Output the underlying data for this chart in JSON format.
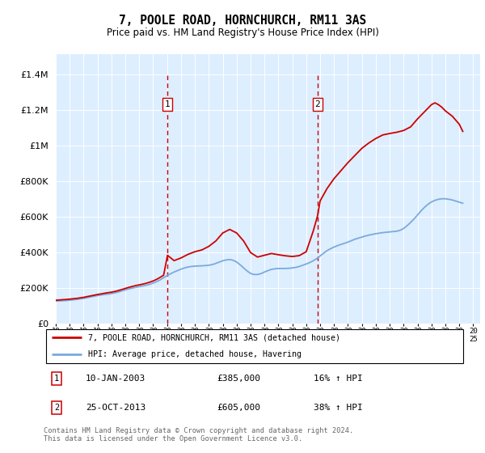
{
  "title": "7, POOLE ROAD, HORNCHURCH, RM11 3AS",
  "subtitle": "Price paid vs. HM Land Registry's House Price Index (HPI)",
  "legend_line1": "7, POOLE ROAD, HORNCHURCH, RM11 3AS (detached house)",
  "legend_line2": "HPI: Average price, detached house, Havering",
  "sale1_date": "10-JAN-2003",
  "sale1_price": 385000,
  "sale1_hpi": "16% ↑ HPI",
  "sale1_year": 2003.03,
  "sale2_date": "25-OCT-2013",
  "sale2_price": 605000,
  "sale2_hpi": "38% ↑ HPI",
  "sale2_year": 2013.81,
  "footer": "Contains HM Land Registry data © Crown copyright and database right 2024.\nThis data is licensed under the Open Government Licence v3.0.",
  "red_color": "#cc0000",
  "blue_color": "#7aaadd",
  "background_color": "#ddeeff",
  "ylim_max": 1400000,
  "xlim_start": 1995.0,
  "xlim_end": 2025.5,
  "hpi_years": [
    1995,
    1995.25,
    1995.5,
    1995.75,
    1996,
    1996.25,
    1996.5,
    1996.75,
    1997,
    1997.25,
    1997.5,
    1997.75,
    1998,
    1998.25,
    1998.5,
    1998.75,
    1999,
    1999.25,
    1999.5,
    1999.75,
    2000,
    2000.25,
    2000.5,
    2000.75,
    2001,
    2001.25,
    2001.5,
    2001.75,
    2002,
    2002.25,
    2002.5,
    2002.75,
    2003,
    2003.25,
    2003.5,
    2003.75,
    2004,
    2004.25,
    2004.5,
    2004.75,
    2005,
    2005.25,
    2005.5,
    2005.75,
    2006,
    2006.25,
    2006.5,
    2006.75,
    2007,
    2007.25,
    2007.5,
    2007.75,
    2008,
    2008.25,
    2008.5,
    2008.75,
    2009,
    2009.25,
    2009.5,
    2009.75,
    2010,
    2010.25,
    2010.5,
    2010.75,
    2011,
    2011.25,
    2011.5,
    2011.75,
    2012,
    2012.25,
    2012.5,
    2012.75,
    2013,
    2013.25,
    2013.5,
    2013.75,
    2014,
    2014.25,
    2014.5,
    2014.75,
    2015,
    2015.25,
    2015.5,
    2015.75,
    2016,
    2016.25,
    2016.5,
    2016.75,
    2017,
    2017.25,
    2017.5,
    2017.75,
    2018,
    2018.25,
    2018.5,
    2018.75,
    2019,
    2019.25,
    2019.5,
    2019.75,
    2020,
    2020.25,
    2020.5,
    2020.75,
    2021,
    2021.25,
    2021.5,
    2021.75,
    2022,
    2022.25,
    2022.5,
    2022.75,
    2023,
    2023.25,
    2023.5,
    2023.75,
    2024,
    2024.25
  ],
  "hpi_values": [
    128000,
    129000,
    130000,
    131000,
    133000,
    135000,
    137000,
    140000,
    143000,
    147000,
    151000,
    155000,
    159000,
    162000,
    165000,
    167000,
    170000,
    174000,
    179000,
    185000,
    191000,
    196000,
    201000,
    205000,
    209000,
    213000,
    217000,
    222000,
    229000,
    237000,
    247000,
    259000,
    271000,
    281000,
    291000,
    299000,
    307000,
    314000,
    319000,
    322000,
    324000,
    325000,
    326000,
    327000,
    329000,
    333000,
    339000,
    347000,
    354000,
    359000,
    361000,
    357000,
    347000,
    332000,
    314000,
    297000,
    283000,
    277000,
    277000,
    282000,
    291000,
    299000,
    306000,
    309000,
    311000,
    311000,
    311000,
    312000,
    314000,
    317000,
    322000,
    329000,
    336000,
    344000,
    354000,
    366000,
    381000,
    397000,
    411000,
    422000,
    431000,
    439000,
    446000,
    452000,
    459000,
    467000,
    475000,
    481000,
    487000,
    493000,
    498000,
    502000,
    506000,
    509000,
    512000,
    514000,
    516000,
    518000,
    520000,
    525000,
    535000,
    551000,
    569000,
    589000,
    611000,
    634000,
    654000,
    671000,
    684000,
    693000,
    699000,
    702000,
    702000,
    699000,
    695000,
    689000,
    683000,
    677000
  ],
  "red_years": [
    1995.0,
    1995.25,
    1995.5,
    1995.75,
    1996.0,
    1996.25,
    1996.5,
    1996.75,
    1997.0,
    1997.25,
    1997.5,
    1997.75,
    1998.0,
    1998.25,
    1998.5,
    1998.75,
    1999.0,
    1999.25,
    1999.5,
    1999.75,
    2000.0,
    2000.25,
    2000.5,
    2000.75,
    2001.0,
    2001.25,
    2001.5,
    2001.75,
    2002.0,
    2002.25,
    2002.5,
    2002.75,
    2003.03,
    2003.5,
    2004.0,
    2004.5,
    2005.0,
    2005.5,
    2006.0,
    2006.5,
    2007.0,
    2007.5,
    2008.0,
    2008.5,
    2009.0,
    2009.5,
    2010.0,
    2010.5,
    2011.0,
    2011.5,
    2012.0,
    2012.5,
    2013.0,
    2013.5,
    2013.81,
    2014.0,
    2014.5,
    2015.0,
    2015.5,
    2016.0,
    2016.5,
    2017.0,
    2017.5,
    2018.0,
    2018.5,
    2019.0,
    2019.5,
    2020.0,
    2020.5,
    2021.0,
    2021.5,
    2022.0,
    2022.25,
    2022.5,
    2022.75,
    2023.0,
    2023.5,
    2024.0,
    2024.25
  ],
  "red_values": [
    133000,
    134000,
    136000,
    137000,
    139000,
    141000,
    143000,
    146000,
    149000,
    153000,
    157000,
    161000,
    165000,
    168000,
    172000,
    175000,
    178000,
    182000,
    187000,
    193000,
    199000,
    205000,
    210000,
    215000,
    219000,
    223000,
    228000,
    234000,
    241000,
    250000,
    261000,
    273000,
    385000,
    355000,
    370000,
    390000,
    405000,
    415000,
    435000,
    465000,
    510000,
    530000,
    510000,
    465000,
    400000,
    375000,
    385000,
    395000,
    388000,
    382000,
    378000,
    383000,
    405000,
    520000,
    605000,
    690000,
    760000,
    815000,
    860000,
    905000,
    945000,
    985000,
    1015000,
    1040000,
    1060000,
    1068000,
    1075000,
    1085000,
    1105000,
    1150000,
    1190000,
    1230000,
    1240000,
    1230000,
    1215000,
    1195000,
    1165000,
    1120000,
    1080000
  ]
}
